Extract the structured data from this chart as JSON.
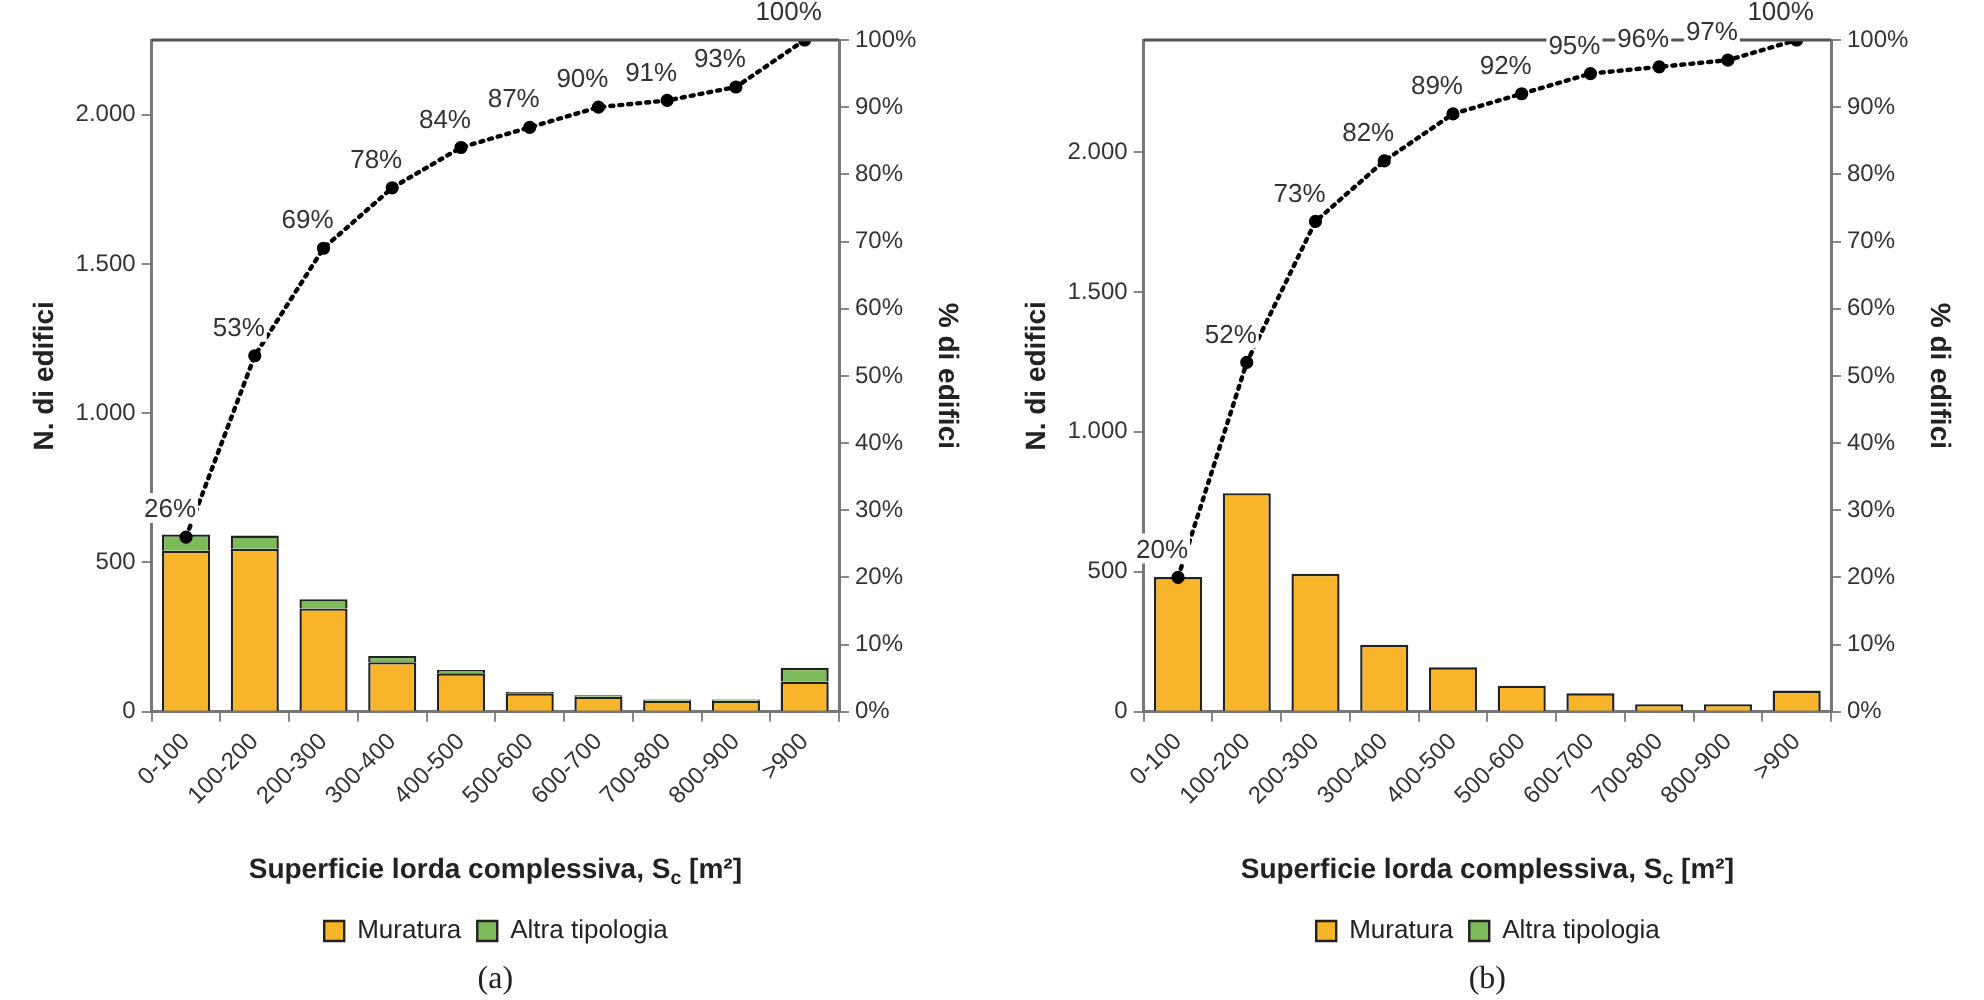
{
  "chart_data": [
    {
      "type": "bar",
      "stacked": true,
      "categories": [
        "0-100",
        "100-200",
        "200-300",
        "300-400",
        "400-500",
        "500-600",
        "600-700",
        "700-800",
        "800-900",
        ">900"
      ],
      "series": [
        {
          "name": "Muratura",
          "color": "#f9b52a",
          "values": [
            539,
            546,
            346,
            166,
            129,
            62,
            50,
            37,
            37,
            101
          ]
        },
        {
          "name": "Altra tipologia",
          "color": "#7dbb5a",
          "values": [
            55,
            44,
            31,
            21,
            11,
            4,
            5,
            4,
            4,
            46
          ]
        },
        {
          "type": "line",
          "axis": "y2",
          "color": "#000000",
          "marker": "circle",
          "line_style": "dotted",
          "values": [
            26,
            53,
            69,
            78,
            84,
            87,
            90,
            91,
            93,
            100
          ],
          "value_labels": [
            "26%",
            "53%",
            "69%",
            "78%",
            "84%",
            "87%",
            "90%",
            "91%",
            "93%",
            "100%"
          ]
        }
      ],
      "xlabel": "Superficie lorda complessiva, S$_{c}$ [m²]",
      "ylabel": "N. di edifici",
      "y2label": "% di edifici",
      "ylim": [
        0,
        2250
      ],
      "yticks": [
        0,
        {
          "value": 500,
          "label": "500"
        },
        {
          "value": 1000,
          "label": "1.000"
        },
        {
          "value": 1500,
          "label": "1.500"
        },
        {
          "value": 2000,
          "label": "2.000"
        }
      ],
      "y2lim": [
        0,
        100
      ],
      "y2ticks": [
        {
          "value": 0,
          "label": "0%"
        },
        {
          "value": 10,
          "label": "10%"
        },
        {
          "value": 20,
          "label": "20%"
        },
        {
          "value": 30,
          "label": "30%"
        },
        {
          "value": 40,
          "label": "40%"
        },
        {
          "value": 50,
          "label": "50%"
        },
        {
          "value": 60,
          "label": "60%"
        },
        {
          "value": 70,
          "label": "70%"
        },
        {
          "value": 80,
          "label": "80%"
        },
        {
          "value": 90,
          "label": "90%"
        },
        {
          "value": 100,
          "label": "100%"
        }
      ],
      "grid": false,
      "legend": "bottom",
      "annotations": [
        "(a)"
      ]
    },
    {
      "type": "bar",
      "stacked": true,
      "categories": [
        "0-100",
        "100-200",
        "200-300",
        "300-400",
        "400-500",
        "500-600",
        "600-700",
        "700-800",
        "800-900",
        ">900"
      ],
      "series": [
        {
          "name": "Muratura",
          "color": "#f9b52a",
          "values": [
            481,
            781,
            493,
            239,
            159,
            93,
            66,
            27,
            27,
            76
          ]
        },
        {
          "name": "Altra tipologia",
          "color": "#7dbb5a",
          "values": [
            0,
            0,
            0,
            0,
            0,
            0,
            0,
            0,
            0,
            0
          ]
        },
        {
          "type": "line",
          "axis": "y2",
          "color": "#000000",
          "marker": "circle",
          "line_style": "dotted",
          "values": [
            20,
            52,
            73,
            82,
            89,
            92,
            95,
            96,
            97,
            100
          ],
          "value_labels": [
            "20%",
            "52%",
            "73%",
            "82%",
            "89%",
            "92%",
            "95%",
            "96%",
            "97%",
            "100%"
          ]
        }
      ],
      "xlabel": "Superficie lorda complessiva, S$_{c}$ [m²]",
      "ylabel": "N. di edifici",
      "y2label": "% di edifici",
      "ylim": [
        0,
        2400
      ],
      "yticks": [
        0,
        {
          "value": 500,
          "label": "500"
        },
        {
          "value": 1000,
          "label": "1.000"
        },
        {
          "value": 1500,
          "label": "1.500"
        },
        {
          "value": 2000,
          "label": "2.000"
        }
      ],
      "y2lim": [
        0,
        100
      ],
      "y2ticks": [
        {
          "value": 0,
          "label": "0%"
        },
        {
          "value": 10,
          "label": "10%"
        },
        {
          "value": 20,
          "label": "20%"
        },
        {
          "value": 30,
          "label": "30%"
        },
        {
          "value": 40,
          "label": "40%"
        },
        {
          "value": 50,
          "label": "50%"
        },
        {
          "value": 60,
          "label": "60%"
        },
        {
          "value": 70,
          "label": "70%"
        },
        {
          "value": 80,
          "label": "80%"
        },
        {
          "value": 90,
          "label": "90%"
        },
        {
          "value": 100,
          "label": "100%"
        }
      ],
      "grid": false,
      "legend": "bottom",
      "annotations": [
        "(b)"
      ]
    }
  ]
}
